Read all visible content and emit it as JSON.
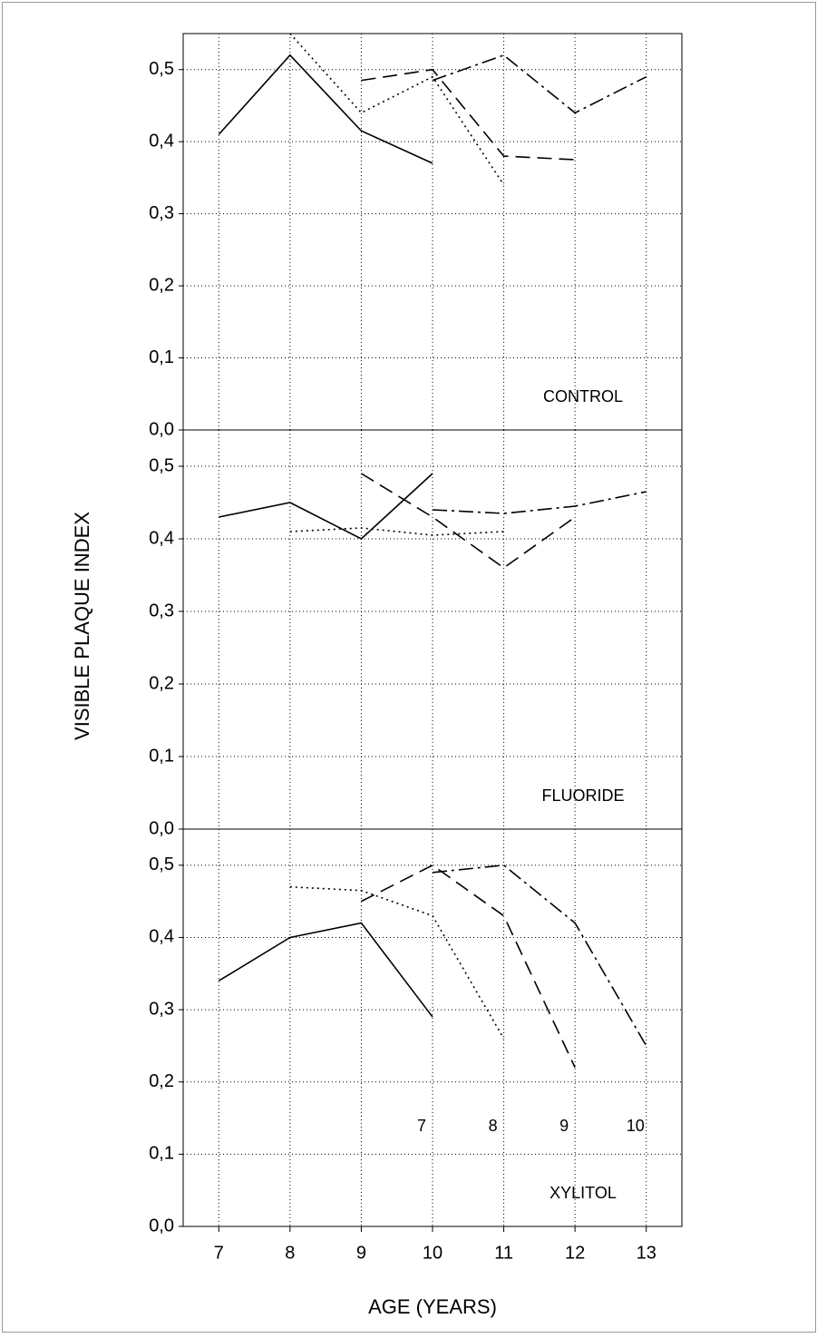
{
  "chart_data": [
    {
      "type": "line",
      "panel_label": "CONTROL",
      "x": [
        7,
        8,
        9,
        10,
        11,
        12,
        13
      ],
      "xlim": [
        6.5,
        13.5
      ],
      "xticks": [
        7,
        8,
        9,
        10,
        11,
        12,
        13
      ],
      "ylim": [
        0,
        0.55
      ],
      "yticks": [
        {
          "value": 0,
          "label": "0,0"
        },
        {
          "value": 0.1,
          "label": "0,1"
        },
        {
          "value": 0.2,
          "label": "0,2"
        },
        {
          "value": 0.3,
          "label": "0,3"
        },
        {
          "value": 0.4,
          "label": "0,4"
        },
        {
          "value": 0.5,
          "label": "0,5"
        }
      ],
      "grid": true,
      "series": [
        {
          "color": "#000000",
          "dash": "solid",
          "values": [
            0.41,
            0.52,
            0.415,
            0.37,
            null,
            null,
            null
          ]
        },
        {
          "color": "#000000",
          "dash": "dotted",
          "values": [
            null,
            0.55,
            0.44,
            0.49,
            0.34,
            null,
            null
          ]
        },
        {
          "color": "#000000",
          "dash": "dashed",
          "values": [
            null,
            null,
            0.485,
            0.5,
            0.38,
            0.375,
            null
          ]
        },
        {
          "color": "#000000",
          "dash": "dashdot",
          "values": [
            null,
            null,
            null,
            0.485,
            0.52,
            0.44,
            0.49
          ]
        }
      ]
    },
    {
      "type": "line",
      "panel_label": "FLUORIDE",
      "ylabel": "VISIBLE PLAQUE INDEX",
      "x": [
        7,
        8,
        9,
        10,
        11,
        12,
        13
      ],
      "xlim": [
        6.5,
        13.5
      ],
      "xticks": [
        7,
        8,
        9,
        10,
        11,
        12,
        13
      ],
      "ylim": [
        0,
        0.55
      ],
      "yticks": [
        {
          "value": 0,
          "label": "0,0"
        },
        {
          "value": 0.1,
          "label": "0,1"
        },
        {
          "value": 0.2,
          "label": "0,2"
        },
        {
          "value": 0.3,
          "label": "0,3"
        },
        {
          "value": 0.4,
          "label": "0,4"
        },
        {
          "value": 0.5,
          "label": "0,5"
        }
      ],
      "grid": true,
      "series": [
        {
          "color": "#000000",
          "dash": "solid",
          "values": [
            0.43,
            0.45,
            0.4,
            0.49,
            null,
            null,
            null
          ]
        },
        {
          "color": "#000000",
          "dash": "dotted",
          "values": [
            null,
            0.41,
            0.415,
            0.405,
            0.41,
            null,
            null
          ]
        },
        {
          "color": "#000000",
          "dash": "dashed",
          "values": [
            null,
            null,
            0.49,
            0.43,
            0.36,
            0.43,
            null
          ]
        },
        {
          "color": "#000000",
          "dash": "dashdot",
          "values": [
            null,
            null,
            null,
            0.44,
            0.435,
            0.445,
            0.465
          ]
        }
      ]
    },
    {
      "type": "line",
      "panel_label": "XYLITOL",
      "xlabel": "AGE (YEARS)",
      "x": [
        7,
        8,
        9,
        10,
        11,
        12,
        13
      ],
      "xlim": [
        6.5,
        13.5
      ],
      "xticks": [
        7,
        8,
        9,
        10,
        11,
        12,
        13
      ],
      "ylim": [
        0,
        0.55
      ],
      "yticks": [
        {
          "value": 0,
          "label": "0,0"
        },
        {
          "value": 0.1,
          "label": "0,1"
        },
        {
          "value": 0.2,
          "label": "0,2"
        },
        {
          "value": 0.3,
          "label": "0,3"
        },
        {
          "value": 0.4,
          "label": "0,4"
        },
        {
          "value": 0.5,
          "label": "0,5"
        }
      ],
      "grid": true,
      "series": [
        {
          "color": "#000000",
          "dash": "solid",
          "label": "7",
          "values": [
            0.34,
            0.4,
            0.42,
            0.29,
            null,
            null,
            null
          ]
        },
        {
          "color": "#000000",
          "dash": "dotted",
          "label": "8",
          "values": [
            null,
            0.47,
            0.465,
            0.43,
            0.26,
            null,
            null
          ]
        },
        {
          "color": "#000000",
          "dash": "dashed",
          "label": "9",
          "values": [
            null,
            null,
            0.45,
            0.5,
            0.43,
            0.22,
            null
          ]
        },
        {
          "color": "#000000",
          "dash": "dashdot",
          "label": "10",
          "values": [
            null,
            null,
            null,
            0.49,
            0.5,
            0.42,
            0.25
          ]
        }
      ]
    }
  ]
}
